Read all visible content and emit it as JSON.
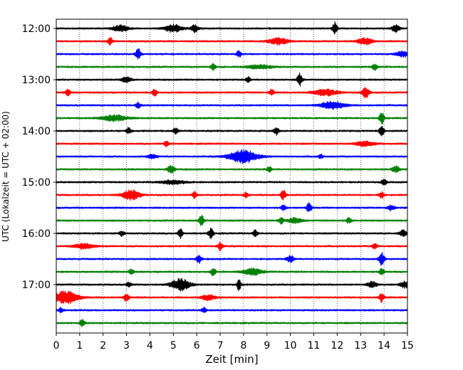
{
  "chart_data": {
    "type": "line",
    "title": "",
    "xlabel": "Zeit  [min]",
    "ylabel": "UTC (Lokalzeit = UTC + 02:00)",
    "xlim": [
      0,
      15
    ],
    "x_ticks": [
      "0",
      "1",
      "2",
      "3",
      "4",
      "5",
      "6",
      "7",
      "8",
      "9",
      "10",
      "11",
      "12",
      "13",
      "14",
      "15"
    ],
    "y_ticks": [
      "12:00",
      "13:00",
      "14:00",
      "15:00",
      "16:00",
      "17:00"
    ],
    "grid": "vertical dotted",
    "trace_minutes": 15,
    "row_start": "12:00",
    "row_colors": [
      "#000000",
      "#ff0000",
      "#0000ff",
      "#008000"
    ],
    "series": [
      {
        "start": "12:00",
        "color": "#000000",
        "events": [
          [
            2.75,
            0.5,
            0.3
          ],
          [
            5,
            0.6,
            0.35
          ],
          [
            5.9,
            0.55,
            0.15
          ],
          [
            11.9,
            1.0,
            0.1
          ],
          [
            14.5,
            0.6,
            0.15
          ]
        ]
      },
      {
        "start": "12:15",
        "color": "#ff0000",
        "events": [
          [
            2.3,
            0.6,
            0.1
          ],
          [
            9.5,
            0.5,
            0.4
          ],
          [
            13.2,
            0.5,
            0.3
          ]
        ]
      },
      {
        "start": "12:30",
        "color": "#0000ff",
        "events": [
          [
            3.5,
            0.9,
            0.1
          ],
          [
            7.8,
            0.5,
            0.1
          ],
          [
            14.8,
            0.4,
            0.3
          ]
        ]
      },
      {
        "start": "12:45",
        "color": "#008000",
        "events": [
          [
            6.7,
            0.5,
            0.1
          ],
          [
            8.7,
            0.3,
            0.5
          ],
          [
            13.6,
            0.5,
            0.1
          ]
        ]
      },
      {
        "start": "13:00",
        "color": "#000000",
        "events": [
          [
            3.0,
            0.4,
            0.2
          ],
          [
            8.2,
            0.4,
            0.1
          ],
          [
            10.4,
            1.0,
            0.1
          ]
        ]
      },
      {
        "start": "13:15",
        "color": "#ff0000",
        "events": [
          [
            0.5,
            0.5,
            0.1
          ],
          [
            4.2,
            0.6,
            0.1
          ],
          [
            9.2,
            0.5,
            0.1
          ],
          [
            11.5,
            0.5,
            0.5
          ],
          [
            13.2,
            0.9,
            0.15
          ]
        ]
      },
      {
        "start": "13:30",
        "color": "#0000ff",
        "events": [
          [
            3.5,
            0.4,
            0.1
          ],
          [
            11.8,
            0.6,
            0.5
          ]
        ]
      },
      {
        "start": "13:45",
        "color": "#008000",
        "events": [
          [
            2.5,
            0.5,
            0.5
          ],
          [
            13.9,
            0.9,
            0.1
          ]
        ]
      },
      {
        "start": "14:00",
        "color": "#000000",
        "events": [
          [
            3.1,
            0.5,
            0.1
          ],
          [
            5.1,
            0.5,
            0.1
          ],
          [
            9.4,
            0.6,
            0.1
          ],
          [
            13.9,
            0.9,
            0.1
          ]
        ]
      },
      {
        "start": "14:15",
        "color": "#ff0000",
        "events": [
          [
            4.7,
            0.5,
            0.1
          ],
          [
            13.2,
            0.4,
            0.4
          ]
        ]
      },
      {
        "start": "14:30",
        "color": "#0000ff",
        "events": [
          [
            4.1,
            0.3,
            0.2
          ],
          [
            8.0,
            1.0,
            0.6
          ],
          [
            11.3,
            0.3,
            0.1
          ]
        ]
      },
      {
        "start": "14:45",
        "color": "#008000",
        "events": [
          [
            4.9,
            0.6,
            0.15
          ],
          [
            9.1,
            0.4,
            0.1
          ],
          [
            14.5,
            0.5,
            0.15
          ]
        ]
      },
      {
        "start": "15:00",
        "color": "#000000",
        "events": [
          [
            5,
            0.3,
            0.5
          ],
          [
            14.0,
            0.6,
            0.1
          ]
        ]
      },
      {
        "start": "15:15",
        "color": "#ff0000",
        "events": [
          [
            3.2,
            0.8,
            0.35
          ],
          [
            5.9,
            0.5,
            0.1
          ],
          [
            8.1,
            0.4,
            0.1
          ],
          [
            9.7,
            0.8,
            0.1
          ],
          [
            13.9,
            0.5,
            0.1
          ]
        ]
      },
      {
        "start": "15:30",
        "color": "#0000ff",
        "events": [
          [
            9.7,
            0.4,
            0.1
          ],
          [
            10.8,
            0.8,
            0.1
          ],
          [
            14.3,
            0.4,
            0.15
          ]
        ]
      },
      {
        "start": "15:45",
        "color": "#008000",
        "events": [
          [
            6.2,
            0.9,
            0.1
          ],
          [
            9.6,
            0.5,
            0.1
          ],
          [
            10.2,
            0.4,
            0.3
          ],
          [
            12.5,
            0.4,
            0.1
          ]
        ]
      },
      {
        "start": "16:00",
        "color": "#000000",
        "events": [
          [
            2.8,
            0.4,
            0.1
          ],
          [
            5.3,
            0.7,
            0.1
          ],
          [
            6.6,
            0.8,
            0.1
          ],
          [
            8.5,
            0.5,
            0.1
          ],
          [
            14.8,
            0.5,
            0.15
          ]
        ]
      },
      {
        "start": "16:15",
        "color": "#ff0000",
        "events": [
          [
            1.2,
            0.4,
            0.4
          ],
          [
            7.0,
            0.6,
            0.1
          ],
          [
            13.6,
            0.5,
            0.1
          ]
        ]
      },
      {
        "start": "16:30",
        "color": "#0000ff",
        "events": [
          [
            6.1,
            0.7,
            0.1
          ],
          [
            10.0,
            0.5,
            0.15
          ],
          [
            13.9,
            1.0,
            0.12
          ]
        ]
      },
      {
        "start": "16:45",
        "color": "#008000",
        "events": [
          [
            3.2,
            0.4,
            0.1
          ],
          [
            6.7,
            0.6,
            0.1
          ],
          [
            8.4,
            0.5,
            0.4
          ],
          [
            13.9,
            0.5,
            0.1
          ]
        ]
      },
      {
        "start": "17:00",
        "color": "#000000",
        "events": [
          [
            3.1,
            0.4,
            0.1
          ],
          [
            5.3,
            0.9,
            0.4
          ],
          [
            7.8,
            1.0,
            0.08
          ],
          [
            13.5,
            0.5,
            0.2
          ],
          [
            14.9,
            0.5,
            0.2
          ]
        ]
      },
      {
        "start": "17:15",
        "color": "#ff0000",
        "events": [
          [
            0.4,
            1.0,
            0.5
          ],
          [
            3.0,
            0.6,
            0.1
          ],
          [
            6.5,
            0.4,
            0.3
          ],
          [
            13.9,
            0.7,
            0.1
          ]
        ]
      },
      {
        "start": "17:30",
        "color": "#0000ff",
        "events": [
          [
            0.2,
            0.4,
            0.1
          ],
          [
            6.3,
            0.4,
            0.1
          ]
        ]
      },
      {
        "start": "17:45",
        "color": "#008000",
        "events": [
          [
            1.1,
            0.6,
            0.1
          ]
        ]
      }
    ]
  }
}
